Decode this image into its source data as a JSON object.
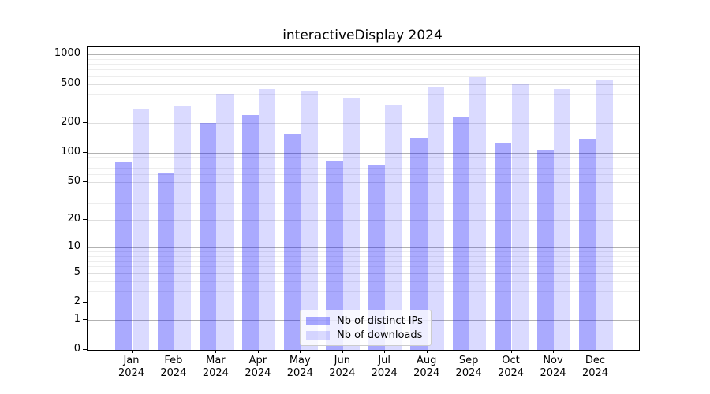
{
  "chart_data": {
    "type": "bar",
    "title": "interactiveDisplay 2024",
    "yscale": "log(value+1)",
    "ylim": [
      0,
      1180
    ],
    "grid": true,
    "legend_position": "lower-center",
    "yticks": [
      0,
      1,
      2,
      5,
      10,
      20,
      50,
      100,
      200,
      500,
      1000
    ],
    "categories": [
      {
        "month": "Jan",
        "year": "2024"
      },
      {
        "month": "Feb",
        "year": "2024"
      },
      {
        "month": "Mar",
        "year": "2024"
      },
      {
        "month": "Apr",
        "year": "2024"
      },
      {
        "month": "May",
        "year": "2024"
      },
      {
        "month": "Jun",
        "year": "2024"
      },
      {
        "month": "Jul",
        "year": "2024"
      },
      {
        "month": "Aug",
        "year": "2024"
      },
      {
        "month": "Sep",
        "year": "2024"
      },
      {
        "month": "Oct",
        "year": "2024"
      },
      {
        "month": "Nov",
        "year": "2024"
      },
      {
        "month": "Dec",
        "year": "2024"
      }
    ],
    "series": [
      {
        "name": "Nb of distinct IPs",
        "color": "rgba(5,5,252,0.34)",
        "values": [
          79,
          61,
          202,
          241,
          154,
          83,
          73,
          141,
          233,
          124,
          107,
          139
        ]
      },
      {
        "name": "Nb of downloads",
        "color": "rgba(5,5,252,0.15)",
        "values": [
          281,
          298,
          401,
          444,
          425,
          360,
          307,
          468,
          586,
          496,
          444,
          543
        ]
      }
    ]
  }
}
